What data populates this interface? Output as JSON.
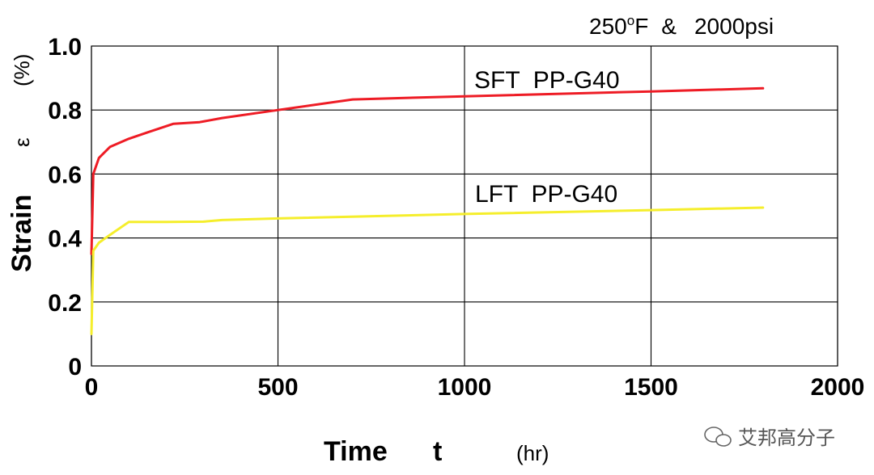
{
  "chart_data": {
    "type": "line",
    "condition": {
      "temp": "250",
      "sup": "o",
      "unit": "F",
      "amp": "&",
      "pressure": "2000psi"
    },
    "xlabel": {
      "name": "Time",
      "symbol": "t",
      "unit": "(hr)"
    },
    "ylabel": {
      "name": "Strain",
      "symbol": "ε",
      "unit": "(%)"
    },
    "xlim": [
      0,
      2000
    ],
    "ylim": [
      0,
      1.0
    ],
    "x_ticks": [
      0,
      500,
      1000,
      1500,
      2000
    ],
    "x_tick_labels": [
      "0",
      "500",
      "1000",
      "1500",
      "2000"
    ],
    "y_ticks": [
      0,
      0.2,
      0.4,
      0.6,
      0.8,
      1.0
    ],
    "y_tick_labels": [
      "0",
      "0.2",
      "0.4",
      "0.6",
      "0.8",
      "1.0"
    ],
    "grid": true,
    "series": [
      {
        "name": "SFT  PP-G40",
        "color": "#ee1c25",
        "points": [
          [
            0,
            0.35
          ],
          [
            5,
            0.6
          ],
          [
            20,
            0.65
          ],
          [
            50,
            0.685
          ],
          [
            100,
            0.71
          ],
          [
            150,
            0.73
          ],
          [
            220,
            0.757
          ],
          [
            290,
            0.762
          ],
          [
            350,
            0.775
          ],
          [
            500,
            0.8
          ],
          [
            700,
            0.833
          ],
          [
            1000,
            0.843
          ],
          [
            1500,
            0.858
          ],
          [
            1800,
            0.868
          ]
        ]
      },
      {
        "name": "LFT  PP-G40",
        "color": "#f5ee2c",
        "points": [
          [
            0,
            0.1
          ],
          [
            5,
            0.36
          ],
          [
            20,
            0.385
          ],
          [
            50,
            0.41
          ],
          [
            100,
            0.45
          ],
          [
            200,
            0.45
          ],
          [
            300,
            0.451
          ],
          [
            350,
            0.456
          ],
          [
            500,
            0.461
          ],
          [
            1000,
            0.475
          ],
          [
            1500,
            0.487
          ],
          [
            1800,
            0.495
          ]
        ]
      }
    ]
  },
  "watermark": {
    "text": "艾邦高分子"
  }
}
